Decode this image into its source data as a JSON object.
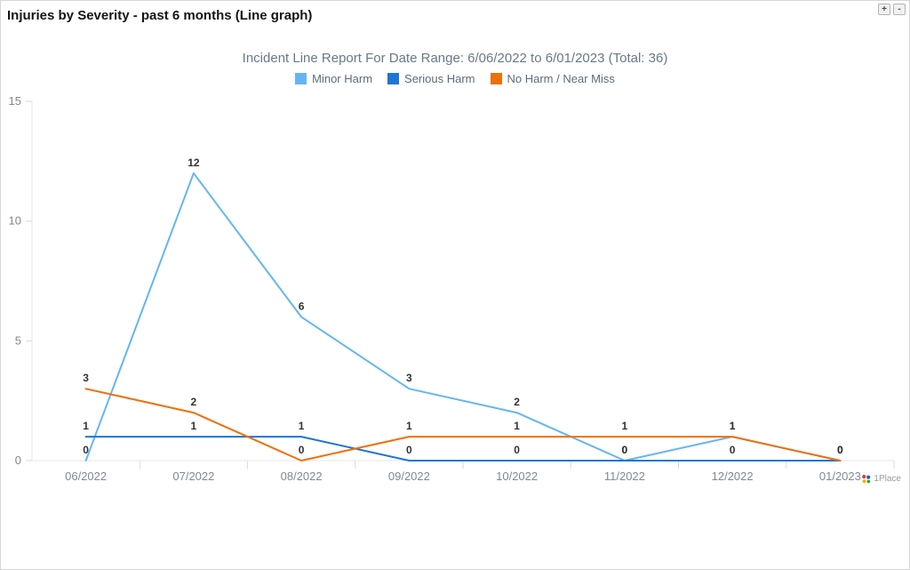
{
  "header": {
    "title": "Injuries by Severity - past 6 months (Line graph)",
    "zoom_in_label": "+",
    "zoom_out_label": "-"
  },
  "chart_data": {
    "type": "line",
    "title": "Incident Line Report For Date Range: 6/06/2022 to 6/01/2023 (Total: 36)",
    "total": 36,
    "categories": [
      "06/2022",
      "07/2022",
      "08/2022",
      "09/2022",
      "10/2022",
      "11/2022",
      "12/2022",
      "01/2023"
    ],
    "series": [
      {
        "name": "Minor Harm",
        "color": "#64B5F6",
        "values": [
          0,
          12,
          6,
          3,
          2,
          0,
          1,
          0
        ]
      },
      {
        "name": "Serious Harm",
        "color": "#1E76D2",
        "values": [
          1,
          1,
          1,
          0,
          0,
          0,
          0,
          0
        ]
      },
      {
        "name": "No Harm / Near Miss",
        "color": "#EE7009",
        "values": [
          3,
          2,
          0,
          1,
          1,
          1,
          1,
          0
        ]
      }
    ],
    "y_ticks": [
      0,
      5,
      10,
      15
    ],
    "ylim": [
      0,
      15
    ],
    "xlabel": "",
    "ylabel": "",
    "grid": false,
    "legend_position": "top",
    "data_labels": true,
    "axis_color": "#e4e4e4",
    "tick_color": "#d9d9d9",
    "label_color": "#7d8995",
    "data_label_color": "#333333"
  },
  "footer": {
    "brand": "1Place"
  }
}
